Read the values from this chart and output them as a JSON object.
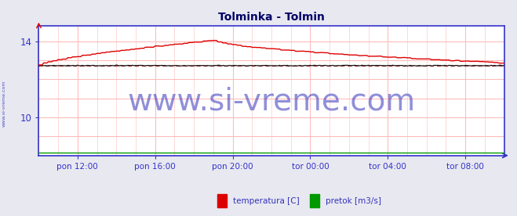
{
  "title": "Tolminka - Tolmin",
  "title_color": "#000066",
  "bg_color": "#e8e8f0",
  "plot_bg_color": "#ffffff",
  "grid_color_v": "#ffbbbb",
  "grid_color_h": "#ffbbbb",
  "ylim": [
    8.0,
    14.8
  ],
  "yticks": [
    10,
    14
  ],
  "ytick_labels": [
    "10",
    "14"
  ],
  "n_points": 289,
  "xlim": [
    0,
    288
  ],
  "xtick_positions": [
    24,
    72,
    120,
    168,
    216,
    264
  ],
  "xtick_labels": [
    "pon 12:00",
    "pon 16:00",
    "pon 20:00",
    "tor 00:00",
    "tor 04:00",
    "tor 08:00"
  ],
  "temp_color": "#dd0000",
  "pretok_color": "#009900",
  "black_line_color": "#111111",
  "avg_line_color": "#cc4444",
  "avg_line_value": 12.7,
  "watermark_text": "www.si-vreme.com",
  "watermark_color": "#3333bb",
  "watermark_fontsize": 28,
  "watermark_alpha": 0.55,
  "sidebar_text": "www.si-vreme.com",
  "sidebar_color": "#3333bb",
  "legend_labels": [
    "temperatura [C]",
    "pretok [m3/s]"
  ],
  "legend_colors": [
    "#dd0000",
    "#009900"
  ],
  "legend_label_color": "#3333bb",
  "spine_color": "#3333cc",
  "axis_label_color": "#3333cc",
  "temp_start": 12.75,
  "temp_peak": 14.05,
  "temp_peak_x": 108,
  "temp_end": 12.85,
  "black_line_value": 12.72,
  "pretok_value": 8.15
}
